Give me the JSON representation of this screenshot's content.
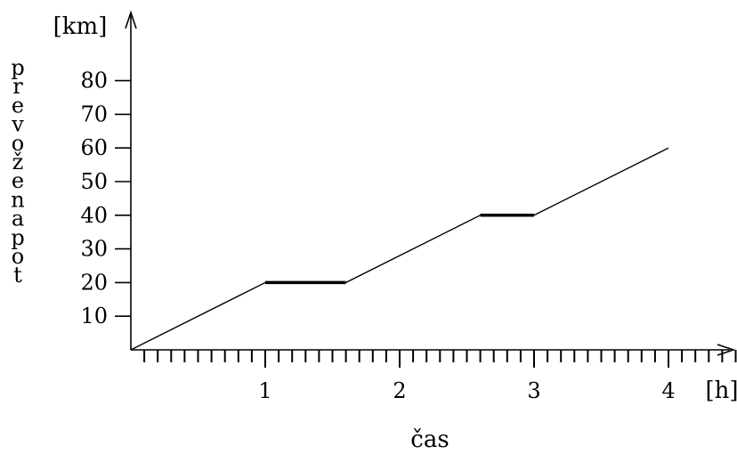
{
  "chart_data": {
    "type": "line",
    "title": "",
    "xlabel": "čas",
    "ylabel": "prevožena pot",
    "x_unit": "[h]",
    "y_unit": "[km]",
    "xlim": [
      0,
      4.5
    ],
    "ylim": [
      0,
      80
    ],
    "x_ticks": [
      1,
      2,
      3,
      4
    ],
    "y_ticks": [
      10,
      20,
      30,
      40,
      50,
      60,
      70,
      80
    ],
    "x_minor_step": 0.1,
    "grid": false,
    "series": [
      {
        "x": [
          0,
          1,
          1.6,
          2.6,
          3,
          4
        ],
        "y": [
          0,
          20,
          20,
          40,
          40,
          60
        ]
      }
    ],
    "stationary_segments": [
      {
        "x": [
          1,
          1.6
        ],
        "y": 20
      },
      {
        "x": [
          2.6,
          3
        ],
        "y": 40
      }
    ]
  }
}
